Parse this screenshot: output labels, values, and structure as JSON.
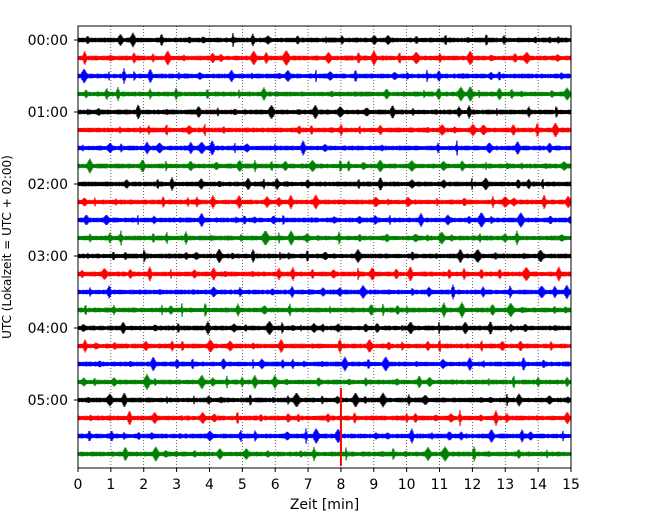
{
  "chart_data": {
    "type": "line",
    "chart_kind": "seismic helicorder",
    "xlabel": "Zeit  [min]",
    "ylabel": "UTC (Lokalzeit = UTC + 02:00)",
    "xlim": [
      0,
      15
    ],
    "x_ticks": [
      0,
      1,
      2,
      3,
      4,
      5,
      6,
      7,
      8,
      9,
      10,
      11,
      12,
      13,
      14,
      15
    ],
    "x_tick_labels": [
      "0",
      "1",
      "2",
      "3",
      "4",
      "5",
      "6",
      "7",
      "8",
      "9",
      "10",
      "11",
      "12",
      "13",
      "14",
      "15"
    ],
    "y_tick_labels": [
      "00:00",
      "01:00",
      "02:00",
      "03:00",
      "04:00",
      "05:00"
    ],
    "y_tick_rows": [
      0,
      4,
      8,
      12,
      16,
      20
    ],
    "trace_count": 24,
    "minutes_per_trace": 15,
    "trace_colors": [
      "#000000",
      "#ff0000",
      "#0000ff",
      "#008000"
    ],
    "grid": {
      "x": true,
      "y": false,
      "style": "dotted"
    },
    "event": {
      "trace": 21,
      "minute": 8.0
    },
    "trace_labels": [
      "00:00",
      "00:15",
      "00:30",
      "00:45",
      "01:00",
      "01:15",
      "01:30",
      "01:45",
      "02:00",
      "02:15",
      "02:30",
      "02:45",
      "03:00",
      "03:15",
      "03:30",
      "03:45",
      "04:00",
      "04:15",
      "04:30",
      "04:45",
      "05:00",
      "05:15",
      "05:30",
      "05:45"
    ]
  }
}
